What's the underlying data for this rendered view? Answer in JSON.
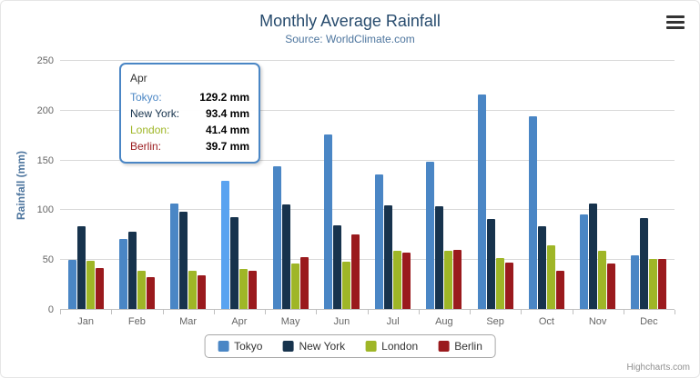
{
  "credits": "Highcharts.com",
  "icons": {
    "export_menu": "hamburger-menu-icon"
  },
  "chart_data": {
    "type": "bar",
    "title": "Monthly Average Rainfall",
    "subtitle": "Source: WorldClimate.com",
    "xlabel": "",
    "ylabel": "Rainfall (mm)",
    "ylim": [
      0,
      250
    ],
    "tick_interval": 50,
    "grid": true,
    "legend_position": "bottom",
    "categories": [
      "Jan",
      "Feb",
      "Mar",
      "Apr",
      "May",
      "Jun",
      "Jul",
      "Aug",
      "Sep",
      "Oct",
      "Nov",
      "Dec"
    ],
    "series": [
      {
        "name": "Tokyo",
        "color": "#4a86c5",
        "values": [
          49.9,
          71.5,
          106.4,
          129.2,
          144.0,
          176.0,
          135.6,
          148.5,
          216.4,
          194.1,
          95.6,
          54.4
        ]
      },
      {
        "name": "New York",
        "color": "#17334d",
        "values": [
          83.6,
          78.8,
          98.5,
          93.4,
          106.0,
          84.5,
          105.0,
          104.3,
          91.2,
          83.5,
          106.6,
          92.3
        ]
      },
      {
        "name": "London",
        "color": "#9fb627",
        "values": [
          48.9,
          38.8,
          39.3,
          41.4,
          47.0,
          48.3,
          59.0,
          59.6,
          52.4,
          65.2,
          59.3,
          51.2
        ]
      },
      {
        "name": "Berlin",
        "color": "#9a1a1d",
        "values": [
          42.4,
          33.2,
          34.5,
          39.7,
          52.6,
          75.5,
          57.4,
          60.4,
          47.6,
          39.1,
          46.8,
          51.1
        ]
      }
    ],
    "hover": {
      "category": "Apr",
      "series": "Tokyo"
    },
    "tooltip": {
      "category": "Apr",
      "border_color": "#4a86c5",
      "rows": [
        {
          "label": "Tokyo:",
          "value": "129.2 mm",
          "color": "#4a86c5"
        },
        {
          "label": "New York:",
          "value": "93.4 mm",
          "color": "#17334d"
        },
        {
          "label": "London:",
          "value": "41.4 mm",
          "color": "#9fb627"
        },
        {
          "label": "Berlin:",
          "value": "39.7 mm",
          "color": "#9a1a1d"
        }
      ]
    }
  }
}
